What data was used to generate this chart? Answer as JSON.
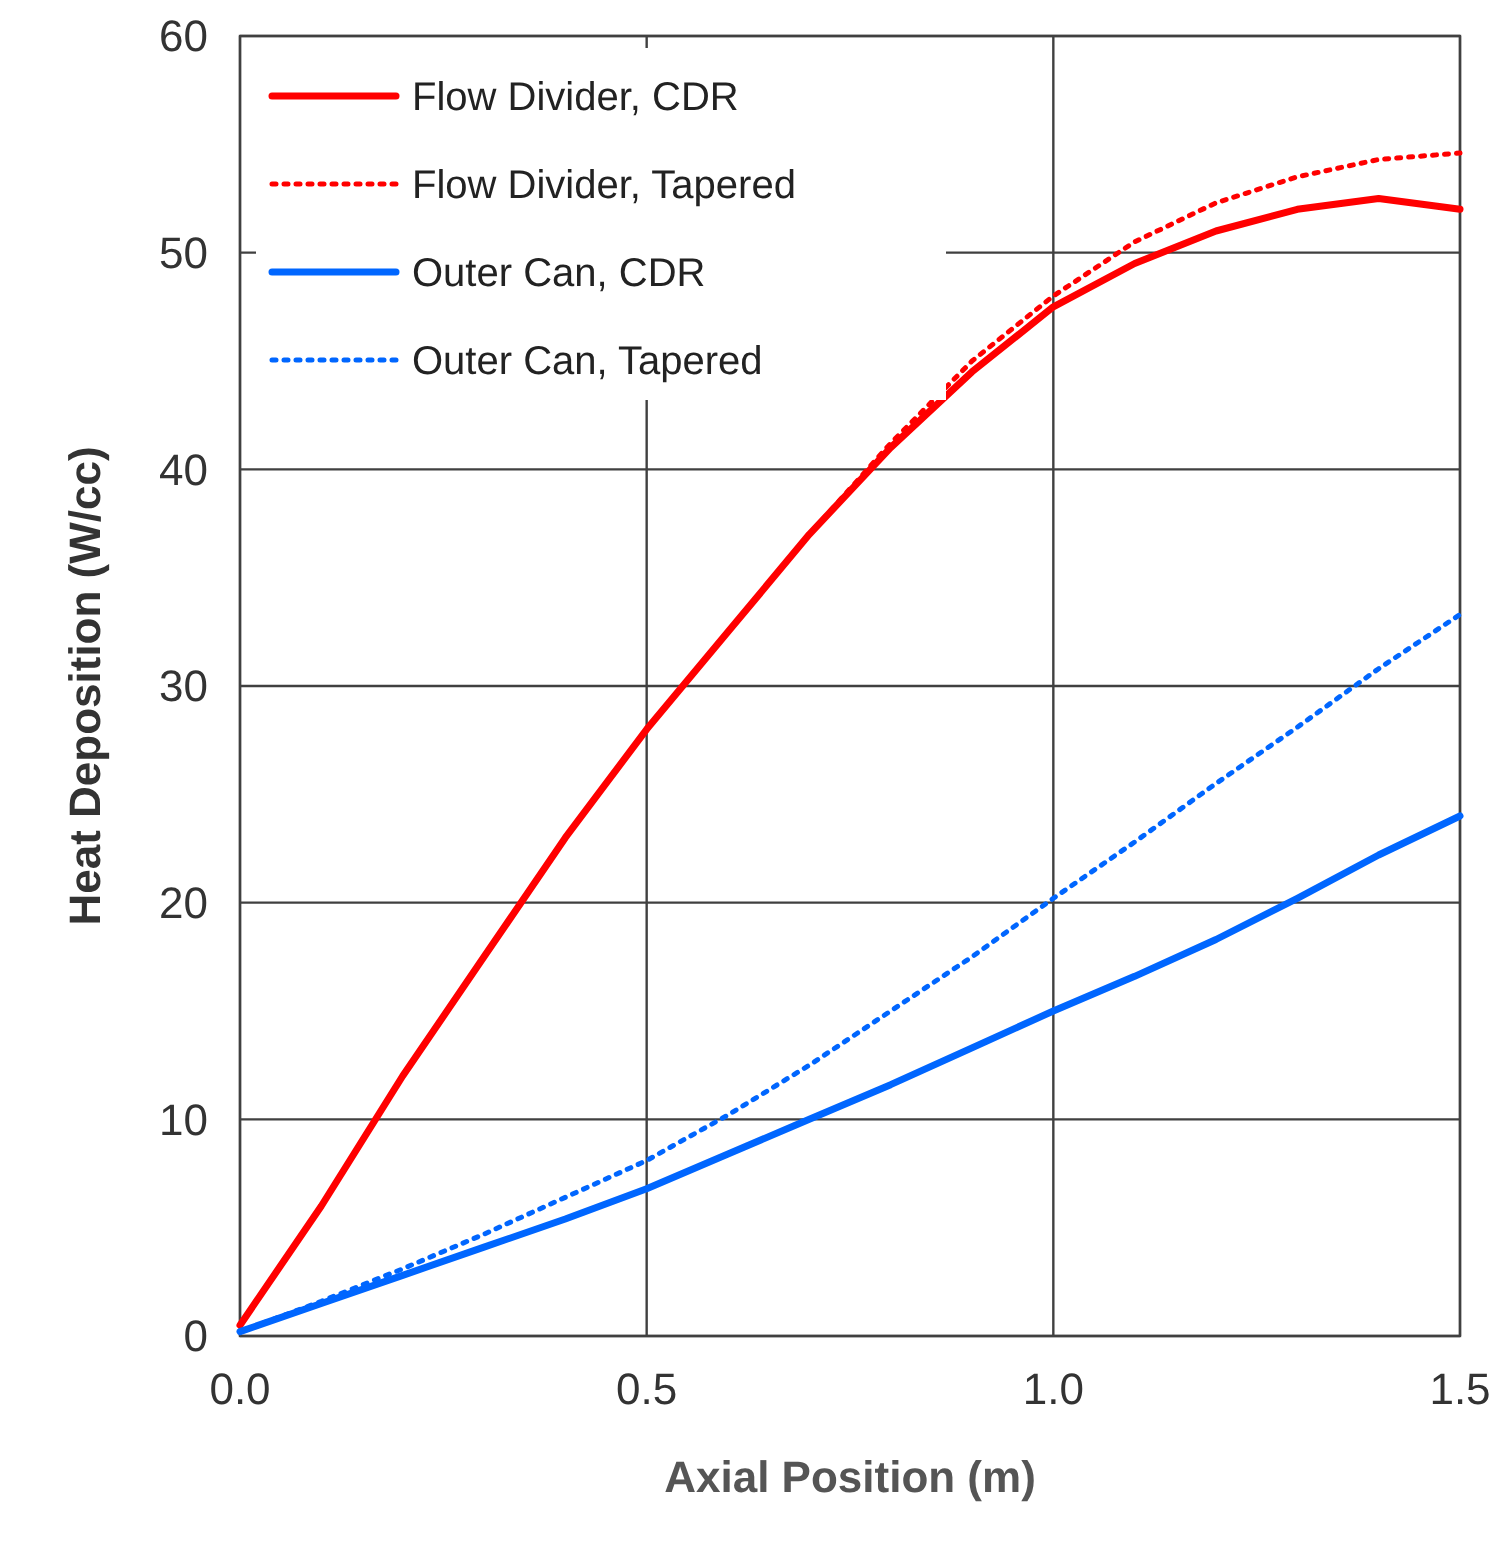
{
  "chart_data": {
    "type": "line",
    "xlabel": "Axial Position (m)",
    "ylabel": "Heat Deposition (W/cc)",
    "x": [
      0,
      0.1,
      0.2,
      0.3,
      0.4,
      0.5,
      0.6,
      0.7,
      0.8,
      0.9,
      1.0,
      1.1,
      1.2,
      1.3,
      1.4,
      1.5
    ],
    "series": [
      {
        "name": "Flow Divider, CDR",
        "color": "#ff0000",
        "line_style": "solid",
        "values": [
          0.5,
          6,
          12,
          17.5,
          23,
          28,
          32.5,
          37,
          41,
          44.5,
          47.5,
          49.5,
          51,
          52,
          52.5,
          52
        ]
      },
      {
        "name": "Flow Divider, Tapered",
        "color": "#ff0000",
        "line_style": "dotted",
        "values": [
          0.5,
          6,
          12,
          17.5,
          23,
          28,
          32.5,
          37,
          41.2,
          45,
          48,
          50.5,
          52.3,
          53.5,
          54.3,
          54.6
        ]
      },
      {
        "name": "Outer Can, CDR",
        "color": "#0066ff",
        "line_style": "solid",
        "values": [
          0.2,
          1.5,
          2.8,
          4.1,
          5.4,
          6.8,
          8.4,
          10,
          11.6,
          13.3,
          15,
          16.6,
          18.3,
          20.2,
          22.2,
          24
        ]
      },
      {
        "name": "Outer Can, Tapered",
        "color": "#0066ff",
        "line_style": "dotted",
        "values": [
          0.2,
          1.6,
          3.1,
          4.7,
          6.4,
          8.1,
          10.2,
          12.5,
          15,
          17.5,
          20.2,
          22.8,
          25.5,
          28.1,
          30.8,
          33.3
        ]
      }
    ],
    "xlim": [
      0,
      1.5
    ],
    "xticks": [
      {
        "value": 0,
        "label": "0.0"
      },
      0.5,
      {
        "value": 1,
        "label": "1.0"
      },
      1.5
    ],
    "ylim": [
      0,
      60
    ],
    "yticks": [
      0,
      10,
      20,
      30,
      40,
      50,
      60
    ],
    "grid": true,
    "legend": "top left",
    "marker": "none"
  }
}
